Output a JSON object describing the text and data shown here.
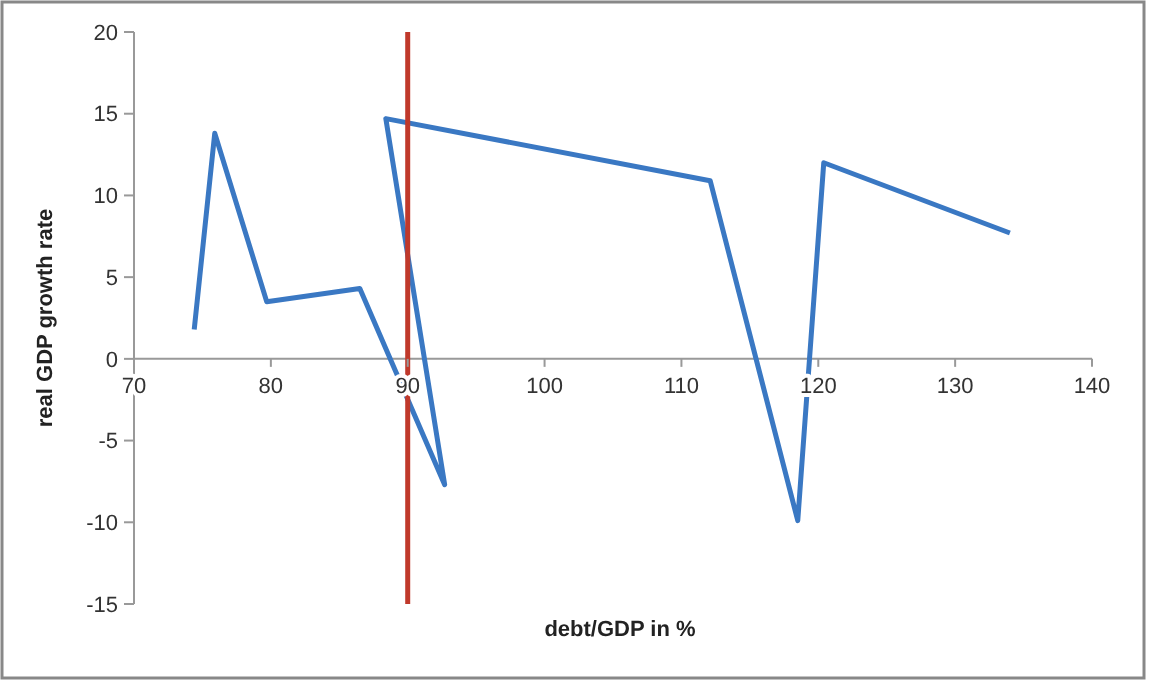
{
  "chart_data": {
    "type": "line",
    "xlabel": "debt/GDP in %",
    "ylabel": "real GDP growth rate",
    "x": [
      74.4,
      75.9,
      79.7,
      86.5,
      92.7,
      88.4,
      112.1,
      118.5,
      120.4,
      134.0
    ],
    "series": [
      {
        "color": "#3a78c3",
        "values": [
          1.8,
          13.8,
          3.5,
          4.3,
          -7.7,
          14.7,
          10.9,
          -9.9,
          12.0,
          7.7
        ]
      }
    ],
    "xlim": [
      70,
      140
    ],
    "xticks": [
      70,
      80,
      90,
      100,
      110,
      120,
      130,
      140
    ],
    "ylim": [
      -15,
      20
    ],
    "yticks": [
      -15,
      -10,
      -5,
      0,
      5,
      10,
      15,
      20
    ],
    "ref_lines": [
      {
        "axis": "x",
        "value": 90,
        "color": "#c0392b"
      }
    ],
    "grid": false,
    "marker": "none",
    "line_style": "solid"
  }
}
